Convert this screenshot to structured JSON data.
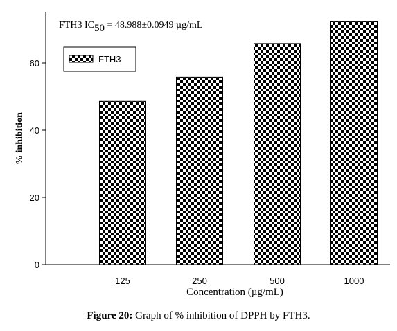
{
  "chart_data": {
    "type": "bar",
    "categories": [
      "125",
      "250",
      "500",
      "1000"
    ],
    "series": [
      {
        "name": "FTH3",
        "values": [
          48.6,
          55.8,
          65.8,
          72.3
        ]
      }
    ],
    "xlabel": "Concentration (µg/mL)",
    "ylabel": "% inhibition",
    "ylim": [
      0,
      75
    ],
    "yticks": [
      0,
      20,
      40,
      60
    ],
    "legend": "top-left",
    "grid": false,
    "bar_pattern": "checkerboard",
    "bar_color": "#000000",
    "annotation": {
      "prefix": "FTH3 IC",
      "subscript": "50",
      "suffix": " = 48.988±0.0949 µg/mL"
    }
  },
  "caption": {
    "label": "Figure 20:",
    "text": " Graph of % inhibition of DPPH by FTH3."
  }
}
